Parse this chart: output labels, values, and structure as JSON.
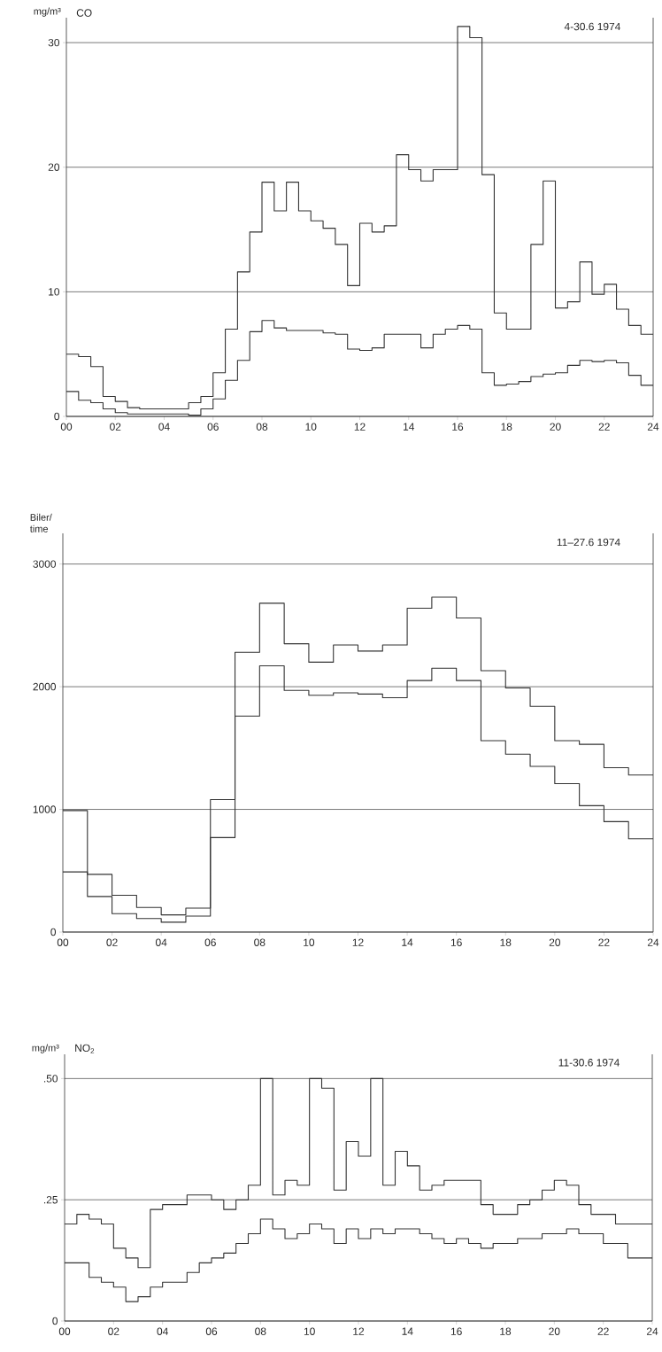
{
  "chart_data": [
    {
      "type": "step",
      "title": "CO",
      "ylabel": "mg/m³",
      "subtitle": "4-30.6 1974",
      "x": [
        0,
        0.5,
        1,
        1.5,
        2,
        2.5,
        3,
        3.5,
        4,
        4.5,
        5,
        5.5,
        6,
        6.5,
        7,
        7.5,
        8,
        8.5,
        9,
        9.5,
        10,
        10.5,
        11,
        11.5,
        12,
        12.5,
        13,
        13.5,
        14,
        14.5,
        15,
        15.5,
        16,
        16.5,
        17,
        17.5,
        18,
        18.5,
        19,
        19.5,
        20,
        20.5,
        21,
        21.5,
        22,
        22.5,
        23,
        23.5,
        24
      ],
      "series": [
        {
          "color": "#333333",
          "values": [
            5.0,
            4.8,
            4.0,
            1.6,
            1.2,
            0.7,
            0.6,
            0.6,
            0.6,
            0.6,
            1.1,
            1.6,
            3.5,
            7.0,
            11.6,
            14.8,
            18.8,
            16.5,
            18.8,
            16.5,
            15.7,
            15.1,
            13.8,
            10.5,
            15.5,
            14.8,
            15.3,
            21.0,
            19.8,
            18.9,
            19.8,
            19.8,
            31.3,
            30.4,
            19.4,
            8.3,
            7.0,
            7.0,
            13.8,
            18.9,
            8.7,
            9.2,
            12.4,
            9.8,
            10.6,
            8.6,
            7.3,
            6.6,
            6.6
          ]
        },
        {
          "color": "#333333",
          "values": [
            2.0,
            1.3,
            1.1,
            0.6,
            0.3,
            0.2,
            0.2,
            0.2,
            0.2,
            0.2,
            0.1,
            0.6,
            1.4,
            2.9,
            4.5,
            6.8,
            7.7,
            7.1,
            6.9,
            6.9,
            6.9,
            6.7,
            6.6,
            5.4,
            5.3,
            5.5,
            6.6,
            6.6,
            6.6,
            5.5,
            6.6,
            7.0,
            7.3,
            7.0,
            3.5,
            2.5,
            2.6,
            2.8,
            3.2,
            3.4,
            3.5,
            4.1,
            4.5,
            4.4,
            4.5,
            4.3,
            3.3,
            2.5,
            2.5
          ]
        }
      ],
      "xlim": [
        0,
        24
      ],
      "xticks": [
        {
          "value": 0,
          "label": "00"
        },
        {
          "value": 2,
          "label": "02"
        },
        {
          "value": 4,
          "label": "04"
        },
        {
          "value": 6,
          "label": "06"
        },
        {
          "value": 8,
          "label": "08"
        },
        10,
        12,
        14,
        16,
        18,
        20,
        22,
        24
      ],
      "ylim": [
        0,
        32
      ],
      "yticks": [
        0,
        10,
        20,
        30
      ],
      "grid": "y",
      "marker": "none"
    },
    {
      "type": "step",
      "ylabel": "Biler/ time",
      "subtitle": "11–27.6 1974",
      "x": [
        0,
        1,
        2,
        3,
        4,
        5,
        6,
        7,
        8,
        9,
        10,
        11,
        12,
        13,
        14,
        15,
        16,
        17,
        18,
        19,
        20,
        21,
        22,
        23,
        24
      ],
      "series": [
        {
          "color": "#333333",
          "values": [
            990,
            290,
            150,
            110,
            80,
            130,
            770,
            1760,
            2170,
            1970,
            1930,
            1950,
            1940,
            1910,
            2050,
            2150,
            2050,
            1560,
            1450,
            1350,
            1210,
            1030,
            900,
            760,
            760
          ]
        },
        {
          "color": "#333333",
          "values": [
            490,
            470,
            300,
            200,
            140,
            195,
            1080,
            2280,
            2680,
            2350,
            2200,
            2340,
            2290,
            2340,
            2640,
            2730,
            2560,
            2130,
            1990,
            1840,
            1560,
            1530,
            1340,
            1280,
            1280
          ]
        }
      ],
      "xlim": [
        0,
        24
      ],
      "xticks": [
        {
          "value": 0,
          "label": "00"
        },
        {
          "value": 2,
          "label": "02"
        },
        {
          "value": 4,
          "label": "04"
        },
        {
          "value": 6,
          "label": "06"
        },
        {
          "value": 8,
          "label": "08"
        },
        10,
        12,
        14,
        16,
        18,
        20,
        22,
        24
      ],
      "ylim": [
        0,
        3250
      ],
      "yticks": [
        0,
        1000,
        2000,
        3000
      ],
      "grid": "y",
      "marker": "none"
    },
    {
      "type": "step",
      "title": "NO$_{2}$",
      "ylabel": "mg/m³",
      "subtitle": "11-30.6 1974",
      "x": [
        0,
        0.5,
        1,
        1.5,
        2,
        2.5,
        3,
        3.5,
        4,
        4.5,
        5,
        5.5,
        6,
        6.5,
        7,
        7.5,
        8,
        8.5,
        9,
        9.5,
        10,
        10.5,
        11,
        11.5,
        12,
        12.5,
        13,
        13.5,
        14,
        14.5,
        15,
        15.5,
        16,
        16.5,
        17,
        17.5,
        18,
        18.5,
        19,
        19.5,
        20,
        20.5,
        21,
        21.5,
        22,
        22.5,
        23,
        23.5,
        24
      ],
      "series": [
        {
          "color": "#333333",
          "values": [
            0.2,
            0.22,
            0.21,
            0.2,
            0.15,
            0.13,
            0.11,
            0.23,
            0.24,
            0.24,
            0.26,
            0.26,
            0.25,
            0.23,
            0.25,
            0.28,
            0.5,
            0.26,
            0.29,
            0.28,
            0.5,
            0.48,
            0.27,
            0.37,
            0.34,
            0.5,
            0.28,
            0.35,
            0.32,
            0.27,
            0.28,
            0.29,
            0.29,
            0.29,
            0.24,
            0.22,
            0.22,
            0.24,
            0.25,
            0.27,
            0.29,
            0.28,
            0.24,
            0.22,
            0.22,
            0.2,
            0.2,
            0.2,
            0.2
          ]
        },
        {
          "color": "#333333",
          "values": [
            0.12,
            0.12,
            0.09,
            0.08,
            0.07,
            0.04,
            0.05,
            0.07,
            0.08,
            0.08,
            0.1,
            0.12,
            0.13,
            0.14,
            0.16,
            0.18,
            0.21,
            0.19,
            0.17,
            0.18,
            0.2,
            0.19,
            0.16,
            0.19,
            0.17,
            0.19,
            0.18,
            0.19,
            0.19,
            0.18,
            0.17,
            0.16,
            0.17,
            0.16,
            0.15,
            0.16,
            0.16,
            0.17,
            0.17,
            0.18,
            0.18,
            0.19,
            0.18,
            0.18,
            0.16,
            0.16,
            0.13,
            0.13,
            0.13
          ]
        }
      ],
      "xlim": [
        0,
        24
      ],
      "xticks": [
        {
          "value": 0,
          "label": "00"
        },
        {
          "value": 2,
          "label": "02"
        },
        {
          "value": 4,
          "label": "04"
        },
        {
          "value": 6,
          "label": "06"
        },
        {
          "value": 8,
          "label": "08"
        },
        10,
        12,
        14,
        16,
        18,
        20,
        22,
        24
      ],
      "ylim": [
        0,
        0.55
      ],
      "yticks": [
        0,
        {
          "value": 0.25,
          "label": ".25"
        },
        {
          "value": 0.5,
          "label": ".50"
        }
      ],
      "grid": "y",
      "marker": "none"
    }
  ]
}
